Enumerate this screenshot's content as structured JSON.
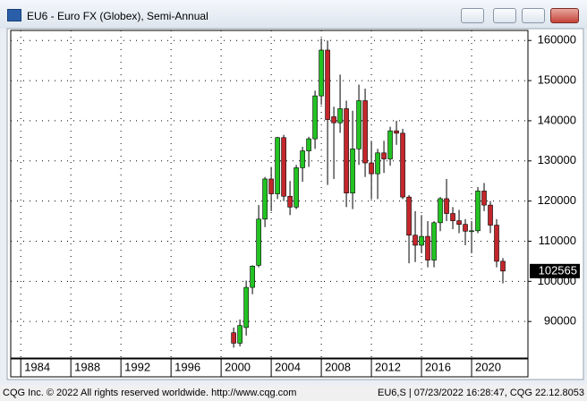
{
  "chart_data": {
    "type": "candlestick",
    "title": "EU6 - Euro FX (Globex), Semi-Annual",
    "x": [
      2001,
      2001.5,
      2002,
      2002.5,
      2003,
      2003.5,
      2004,
      2004.5,
      2005,
      2005.5,
      2006,
      2006.5,
      2007,
      2007.5,
      2008,
      2008.5,
      2009,
      2009.5,
      2010,
      2010.5,
      2011,
      2011.5,
      2012,
      2012.5,
      2013,
      2013.5,
      2014,
      2014.5,
      2015,
      2015.5,
      2016,
      2016.5,
      2017,
      2017.5,
      2018,
      2018.5,
      2019,
      2019.5,
      2020,
      2020.5,
      2021,
      2021.5,
      2022,
      2022.5
    ],
    "open": [
      87200,
      84600,
      88500,
      98500,
      104000,
      115500,
      125500,
      121800,
      135800,
      121200,
      118500,
      128300,
      132500,
      135500,
      146200,
      157600,
      141000,
      139500,
      143000,
      122000,
      133000,
      145000,
      129500,
      126800,
      132000,
      130500,
      137500,
      136900,
      121000,
      111500,
      109000,
      111200,
      105300,
      114600,
      120600,
      116900,
      115100,
      114200,
      112500,
      112600,
      122500,
      119000,
      114000,
      105000
    ],
    "high": [
      88500,
      90500,
      100200,
      104000,
      119000,
      126000,
      128500,
      136000,
      136500,
      125000,
      129000,
      133500,
      136000,
      147500,
      160500,
      160000,
      143500,
      151500,
      145000,
      142500,
      149000,
      148000,
      135000,
      133000,
      135000,
      138500,
      140000,
      138000,
      121500,
      117500,
      116500,
      115000,
      115000,
      121000,
      125500,
      118500,
      117800,
      115500,
      115000,
      123500,
      124500,
      120000,
      115500,
      105800
    ],
    "low": [
      83500,
      83800,
      86500,
      96800,
      103500,
      113500,
      117500,
      120500,
      120000,
      116500,
      118000,
      124800,
      128500,
      133000,
      144000,
      124000,
      125500,
      137000,
      118500,
      118000,
      129000,
      126000,
      120500,
      120500,
      127000,
      128800,
      134000,
      120500,
      104500,
      104800,
      107000,
      103500,
      103500,
      112500,
      115000,
      113000,
      112000,
      109000,
      107000,
      112000,
      117500,
      112000,
      103500,
      99500
    ],
    "close": [
      84600,
      89000,
      98500,
      103800,
      115500,
      125500,
      121800,
      135800,
      121200,
      118500,
      128300,
      132500,
      135500,
      146200,
      157600,
      140300,
      139500,
      143000,
      122000,
      133000,
      145000,
      129500,
      126800,
      132000,
      130500,
      137500,
      136900,
      121000,
      111500,
      109000,
      111200,
      105300,
      114600,
      120600,
      116900,
      115100,
      114200,
      112500,
      112600,
      122500,
      119000,
      114000,
      105000,
      102565
    ],
    "up_color": "#22c322",
    "down_color": "#c3262b",
    "last_value": 102565,
    "xlim": [
      1983.2,
      2024.5
    ],
    "xticks": [
      1984,
      1988,
      1992,
      1996,
      2000,
      2004,
      2008,
      2012,
      2016,
      2020
    ],
    "ylim": [
      80900,
      162500
    ],
    "yticks": [
      90000,
      100000,
      110000,
      120000,
      130000,
      140000,
      150000,
      160000
    ],
    "grid": true
  },
  "footer": {
    "left": "CQG Inc. © 2022 All rights reserved worldwide. http://www.cqg.com",
    "right": "EU6,S | 07/23/2022 16:28:47, CQG 22.12.8053"
  }
}
